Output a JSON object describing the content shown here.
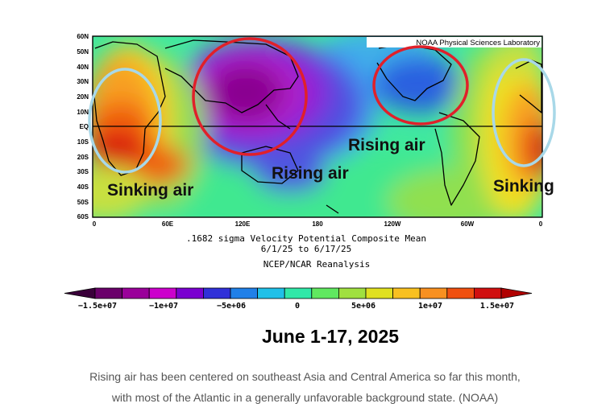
{
  "map": {
    "source_label": "NOAA Physical Sciences Laboratory",
    "lat_ticks": [
      "60N",
      "50N",
      "40N",
      "30N",
      "20N",
      "10N",
      "EQ",
      "10S",
      "20S",
      "30S",
      "40S",
      "50S",
      "60S"
    ],
    "lon_ticks": [
      "0",
      "60E",
      "120E",
      "180",
      "120W",
      "60W",
      "0"
    ],
    "subtitle_line1": ".1682 sigma Velocity Potential  Composite Mean",
    "subtitle_line2": "6/1/25  to 6/17/25",
    "subtitle_line3": "NCEP/NCAR Reanalysis",
    "annotations": {
      "sinking_air_left": "Sinking air",
      "rising_air_center": "Rising air",
      "rising_air_right": "Rising air",
      "sinking_air_right": "Sinking"
    },
    "circle_colors": {
      "rising": "#e0202a",
      "sinking": "#a8d8e8"
    }
  },
  "colorbar": {
    "labels": [
      "−1.5e+07",
      "−1e+07",
      "−5e+06",
      "0",
      "5e+06",
      "1e+07",
      "1.5e+07"
    ],
    "colors": [
      "#6a006a",
      "#9a009a",
      "#cc00cc",
      "#7a00d0",
      "#3030d8",
      "#2080e8",
      "#20c0e8",
      "#30e8a8",
      "#60e860",
      "#a0e040",
      "#e0e020",
      "#f8c020",
      "#f89020",
      "#f05010",
      "#d01010"
    ]
  },
  "date_title": "June 1-17, 2025",
  "caption": {
    "line1": "Rising air has been centered on southeast Asia and Central America so far this month,",
    "line2": "with most of the Atlantic in a generally unfavorable background state. (NOAA)"
  }
}
